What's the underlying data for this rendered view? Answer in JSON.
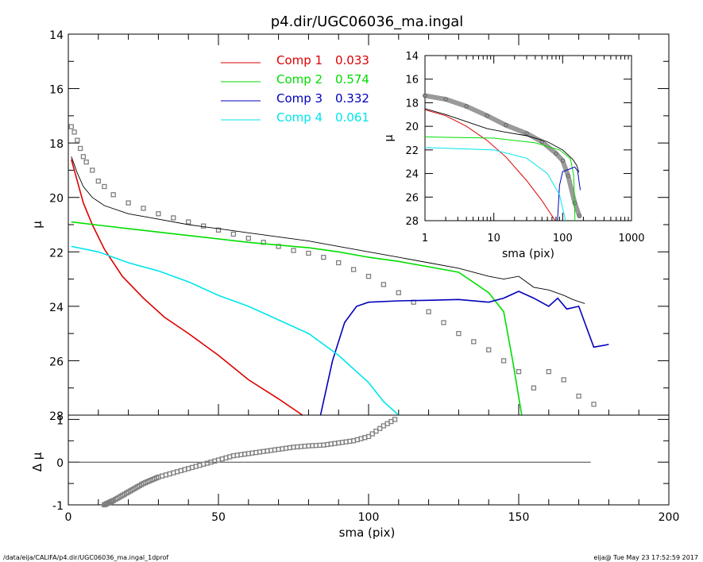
{
  "title": "p4.dir/UGC06036_ma.ingal",
  "footer_left": "/data/eija/CALIFA/p4.dir/UGC06036_ma.ingal_1dprof",
  "footer_right": "eija@  Tue May 23 17:52:59 2017",
  "colors": {
    "data": "#7f7f7f",
    "model": "#000000",
    "comp1": "#dd0000",
    "comp2": "#00dd00",
    "comp3": "#0000bb",
    "comp4": "#00e5ee"
  },
  "chart_data": [
    {
      "type": "line",
      "panel": "main",
      "xlabel": "sma (pix)",
      "ylabel": "μ",
      "xlim": [
        0,
        200
      ],
      "ylim": [
        28,
        14
      ],
      "x_ticks": [
        "0",
        "50",
        "100",
        "150",
        "200"
      ],
      "y_ticks": [
        "14",
        "16",
        "18",
        "20",
        "22",
        "24",
        "26",
        "28"
      ],
      "legend": [
        {
          "name": "Comp 1",
          "value": "0.033"
        },
        {
          "name": "Comp 2",
          "value": "0.574"
        },
        {
          "name": "Comp 3",
          "value": "0.332"
        },
        {
          "name": "Comp 4",
          "value": "0.061"
        }
      ],
      "series": [
        {
          "name": "data",
          "style": "squares",
          "points": [
            [
              1,
              17.4
            ],
            [
              2,
              17.6
            ],
            [
              3,
              17.9
            ],
            [
              4,
              18.2
            ],
            [
              5,
              18.5
            ],
            [
              6,
              18.7
            ],
            [
              8,
              19.0
            ],
            [
              10,
              19.4
            ],
            [
              12,
              19.6
            ],
            [
              15,
              19.9
            ],
            [
              20,
              20.2
            ],
            [
              25,
              20.4
            ],
            [
              30,
              20.6
            ],
            [
              35,
              20.75
            ],
            [
              40,
              20.9
            ],
            [
              45,
              21.05
            ],
            [
              50,
              21.2
            ],
            [
              55,
              21.35
            ],
            [
              60,
              21.5
            ],
            [
              65,
              21.65
            ],
            [
              70,
              21.8
            ],
            [
              75,
              21.95
            ],
            [
              80,
              22.05
            ],
            [
              85,
              22.2
            ],
            [
              90,
              22.4
            ],
            [
              95,
              22.65
            ],
            [
              100,
              22.9
            ],
            [
              105,
              23.2
            ],
            [
              110,
              23.5
            ],
            [
              115,
              23.85
            ],
            [
              120,
              24.2
            ],
            [
              125,
              24.6
            ],
            [
              130,
              25.0
            ],
            [
              135,
              25.3
            ],
            [
              140,
              25.6
            ],
            [
              145,
              26.0
            ],
            [
              150,
              26.4
            ],
            [
              155,
              27.0
            ],
            [
              160,
              26.4
            ],
            [
              165,
              26.7
            ],
            [
              170,
              27.3
            ],
            [
              175,
              27.6
            ]
          ]
        },
        {
          "name": "model",
          "style": "line",
          "points": [
            [
              1,
              18.5
            ],
            [
              3,
              19.1
            ],
            [
              5,
              19.6
            ],
            [
              8,
              20.0
            ],
            [
              12,
              20.3
            ],
            [
              20,
              20.6
            ],
            [
              30,
              20.8
            ],
            [
              40,
              21.0
            ],
            [
              50,
              21.15
            ],
            [
              60,
              21.3
            ],
            [
              70,
              21.45
            ],
            [
              80,
              21.6
            ],
            [
              90,
              21.8
            ],
            [
              100,
              22.0
            ],
            [
              110,
              22.2
            ],
            [
              120,
              22.4
            ],
            [
              130,
              22.6
            ],
            [
              140,
              22.9
            ],
            [
              145,
              23.0
            ],
            [
              150,
              22.9
            ],
            [
              155,
              23.3
            ],
            [
              160,
              23.4
            ],
            [
              165,
              23.6
            ],
            [
              168,
              23.75
            ],
            [
              172,
              23.9
            ]
          ]
        },
        {
          "name": "Comp 1",
          "style": "line",
          "points": [
            [
              1,
              18.6
            ],
            [
              3,
              19.4
            ],
            [
              5,
              20.2
            ],
            [
              8,
              21.0
            ],
            [
              12,
              21.9
            ],
            [
              18,
              22.9
            ],
            [
              25,
              23.7
            ],
            [
              32,
              24.4
            ],
            [
              40,
              25.0
            ],
            [
              50,
              25.8
            ],
            [
              60,
              26.7
            ],
            [
              70,
              27.4
            ],
            [
              78,
              28.0
            ]
          ]
        },
        {
          "name": "Comp 2",
          "style": "line",
          "points": [
            [
              1,
              20.9
            ],
            [
              20,
              21.15
            ],
            [
              40,
              21.4
            ],
            [
              60,
              21.65
            ],
            [
              80,
              21.85
            ],
            [
              90,
              22.0
            ],
            [
              100,
              22.2
            ],
            [
              110,
              22.35
            ],
            [
              120,
              22.55
            ],
            [
              130,
              22.75
            ],
            [
              140,
              23.5
            ],
            [
              145,
              24.2
            ],
            [
              148,
              26.0
            ],
            [
              151,
              28.0
            ]
          ]
        },
        {
          "name": "Comp 3",
          "style": "line",
          "points": [
            [
              84,
              28.0
            ],
            [
              88,
              26.0
            ],
            [
              92,
              24.6
            ],
            [
              96,
              24.0
            ],
            [
              100,
              23.85
            ],
            [
              110,
              23.8
            ],
            [
              120,
              23.78
            ],
            [
              130,
              23.75
            ],
            [
              140,
              23.85
            ],
            [
              145,
              23.7
            ],
            [
              150,
              23.45
            ],
            [
              155,
              23.7
            ],
            [
              160,
              24.0
            ],
            [
              163,
              23.7
            ],
            [
              166,
              24.1
            ],
            [
              170,
              24.0
            ],
            [
              175,
              25.5
            ],
            [
              180,
              25.4
            ]
          ]
        },
        {
          "name": "Comp 4",
          "style": "line",
          "points": [
            [
              1,
              21.8
            ],
            [
              10,
              22.0
            ],
            [
              20,
              22.4
            ],
            [
              30,
              22.7
            ],
            [
              40,
              23.1
            ],
            [
              50,
              23.6
            ],
            [
              60,
              24.0
            ],
            [
              70,
              24.5
            ],
            [
              80,
              25.0
            ],
            [
              90,
              25.8
            ],
            [
              100,
              26.8
            ],
            [
              105,
              27.5
            ],
            [
              110,
              28.0
            ]
          ]
        }
      ]
    },
    {
      "type": "scatter",
      "panel": "residual",
      "xlabel": "sma (pix)",
      "ylabel": "Δ μ",
      "xlim": [
        0,
        200
      ],
      "ylim": [
        -1,
        1.1
      ],
      "x_ticks": [
        "0",
        "50",
        "100",
        "150",
        "200"
      ],
      "y_ticks": [
        "-1",
        "0",
        "1"
      ],
      "series": [
        {
          "name": "residual",
          "points": [
            [
              12,
              -1.0
            ],
            [
              15,
              -0.9
            ],
            [
              20,
              -0.7
            ],
            [
              25,
              -0.5
            ],
            [
              30,
              -0.35
            ],
            [
              35,
              -0.25
            ],
            [
              40,
              -0.15
            ],
            [
              45,
              -0.05
            ],
            [
              50,
              0.05
            ],
            [
              55,
              0.15
            ],
            [
              60,
              0.2
            ],
            [
              65,
              0.25
            ],
            [
              70,
              0.3
            ],
            [
              75,
              0.35
            ],
            [
              80,
              0.38
            ],
            [
              85,
              0.4
            ],
            [
              90,
              0.45
            ],
            [
              95,
              0.5
            ],
            [
              100,
              0.6
            ],
            [
              105,
              0.85
            ],
            [
              110,
              1.05
            ]
          ]
        }
      ],
      "zero_line": [
        0,
        174
      ]
    },
    {
      "type": "line",
      "panel": "inset",
      "xlabel": "sma (pix)",
      "ylabel": "μ",
      "xscale": "log",
      "xlim": [
        1,
        1000
      ],
      "ylim": [
        28,
        14
      ],
      "x_ticks": [
        "1",
        "10",
        "100",
        "1000"
      ],
      "y_ticks": [
        "14",
        "16",
        "18",
        "20",
        "22",
        "24",
        "26",
        "28"
      ],
      "series": [
        {
          "name": "data",
          "points": [
            [
              1,
              17.4
            ],
            [
              2,
              17.7
            ],
            [
              4,
              18.3
            ],
            [
              8,
              19.1
            ],
            [
              15,
              19.9
            ],
            [
              30,
              20.6
            ],
            [
              50,
              21.3
            ],
            [
              80,
              22.3
            ],
            [
              100,
              22.9
            ],
            [
              120,
              24.2
            ],
            [
              150,
              26.5
            ],
            [
              175,
              27.6
            ]
          ]
        },
        {
          "name": "model",
          "points": [
            [
              1,
              18.5
            ],
            [
              2,
              19.0
            ],
            [
              4,
              19.6
            ],
            [
              8,
              20.2
            ],
            [
              15,
              20.5
            ],
            [
              30,
              20.8
            ],
            [
              60,
              21.3
            ],
            [
              100,
              22.0
            ],
            [
              140,
              22.8
            ],
            [
              160,
              23.3
            ],
            [
              172,
              23.9
            ]
          ]
        },
        {
          "name": "Comp 1",
          "points": [
            [
              1,
              18.6
            ],
            [
              2,
              19.1
            ],
            [
              4,
              20.0
            ],
            [
              8,
              21.2
            ],
            [
              15,
              22.6
            ],
            [
              30,
              24.6
            ],
            [
              50,
              26.3
            ],
            [
              78,
              28.0
            ]
          ]
        },
        {
          "name": "Comp 2",
          "points": [
            [
              1,
              20.9
            ],
            [
              10,
              21.0
            ],
            [
              40,
              21.4
            ],
            [
              90,
              22.0
            ],
            [
              130,
              22.75
            ],
            [
              145,
              24.2
            ],
            [
              151,
              28.0
            ]
          ]
        },
        {
          "name": "Comp 3",
          "points": [
            [
              84,
              28.0
            ],
            [
              90,
              25.0
            ],
            [
              100,
              23.85
            ],
            [
              150,
              23.45
            ],
            [
              165,
              23.8
            ],
            [
              180,
              25.4
            ]
          ]
        },
        {
          "name": "Comp 4",
          "points": [
            [
              1,
              21.8
            ],
            [
              10,
              22.0
            ],
            [
              30,
              22.7
            ],
            [
              60,
              24.0
            ],
            [
              90,
              25.8
            ],
            [
              110,
              28.0
            ]
          ]
        }
      ]
    }
  ]
}
